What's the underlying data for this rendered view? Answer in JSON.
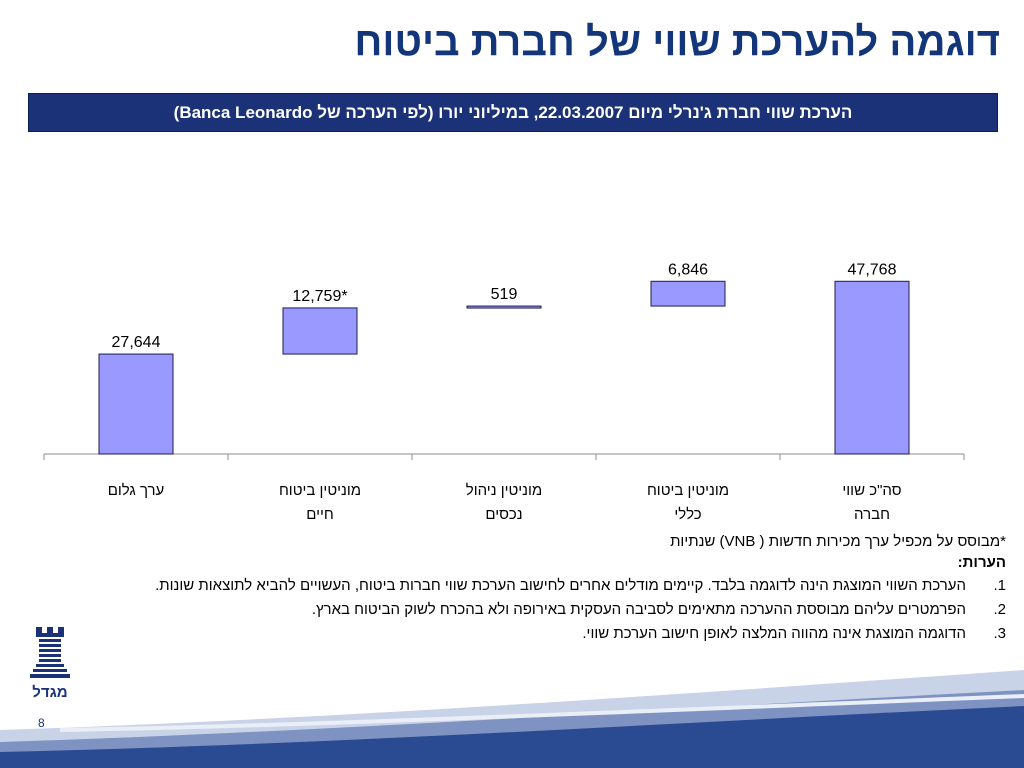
{
  "header": {
    "title": "דוגמה להערכת שווי של חברת ביטוח",
    "subtitle": "הערכת שווי חברת ג'נרלי מיום 22.03.2007, במיליוני יורו (לפי הערכה של Banca Leonardo)"
  },
  "chart_data": {
    "type": "bar",
    "subtype": "waterfall",
    "categories": [
      [
        "ערך גלום"
      ],
      [
        "מוניטין ביטוח",
        "חיים"
      ],
      [
        "מוניטין ניהול",
        "נכסים"
      ],
      [
        "מוניטין ביטוח",
        "כללי"
      ],
      [
        "סה\"כ שווי",
        "חברה"
      ]
    ],
    "values": [
      27644,
      12759,
      519,
      6846,
      47768
    ],
    "value_labels": [
      "27,644",
      "12,759*",
      "519",
      "6,846",
      "47,768"
    ],
    "kind": [
      "total",
      "increment",
      "increment",
      "increment",
      "total"
    ],
    "ylim": [
      0,
      52000
    ],
    "grid": false,
    "legend": "none",
    "bar_color": "#9999ff",
    "bar_edge": "#1b1b4d"
  },
  "footnote": "*מבוסס על מכפיל ערך מכירות חדשות ( VNB) שנתיות",
  "notes": {
    "title": "הערות:",
    "items": [
      {
        "num": "1.",
        "text": "הערכת השווי המוצגת הינה לדוגמה בלבד. קיימים מודלים אחרים לחישוב הערכת שווי חברות ביטוח, העשויים להביא לתוצאות שונות."
      },
      {
        "num": "2.",
        "text": "הפרמטרים עליהם מבוססת ההערכה מתאימים לסביבה העסקית באירופה ולא בהכרח לשוק הביטוח בארץ."
      },
      {
        "num": "3.",
        "text": "הדוגמה המוצגת אינה מהווה המלצה לאופן חישוב הערכת שווי."
      }
    ]
  },
  "logo": {
    "text": "מגדל",
    "color": "#1b3278"
  },
  "page_number": "8"
}
